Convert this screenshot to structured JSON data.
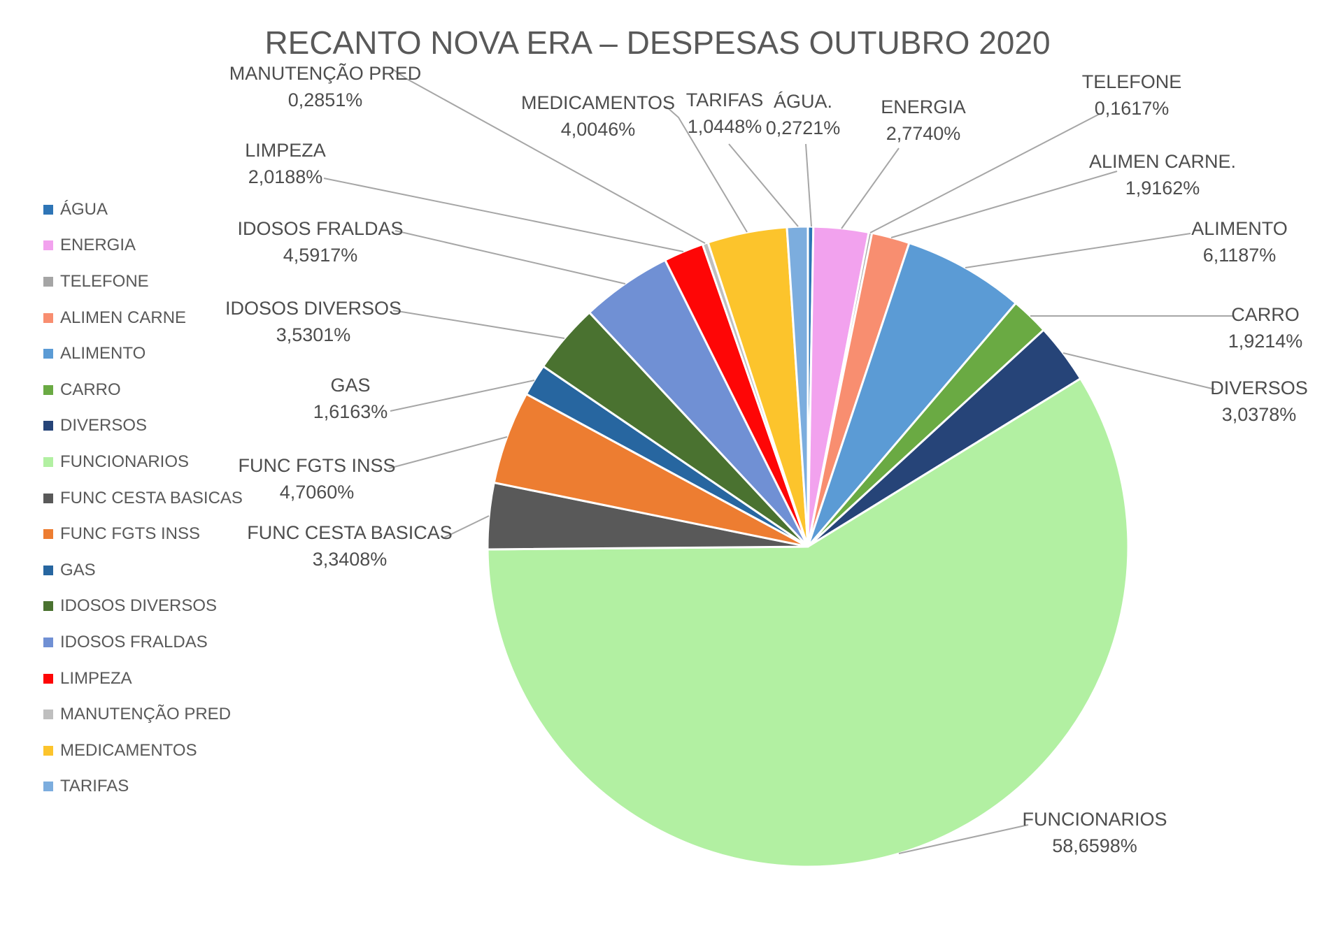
{
  "title": "RECANTO NOVA ERA – DESPESAS OUTUBRO 2020",
  "chart_data": {
    "type": "pie",
    "title": "RECANTO NOVA ERA – DESPESAS OUTUBRO 2020",
    "unit": "percent",
    "direction": "clockwise",
    "start_angle_deg": 0,
    "legend_position": "left",
    "grid": false,
    "categories": [
      "ÁGUA",
      "ENERGIA",
      "TELEFONE",
      "ALIMEN CARNE",
      "ALIMENTO",
      "CARRO",
      "DIVERSOS",
      "FUNCIONARIOS",
      "FUNC CESTA BASICAS",
      "FUNC FGTS INSS",
      "GAS",
      "IDOSOS DIVERSOS",
      "IDOSOS FRALDAS",
      "LIMPEZA",
      "MANUTENÇÃO PRED",
      "MEDICAMENTOS",
      "TARIFAS"
    ],
    "values": [
      0.2721,
      2.774,
      0.1617,
      1.9162,
      6.1187,
      1.9214,
      3.0378,
      58.6598,
      3.3408,
      4.706,
      1.6163,
      3.5301,
      4.5917,
      2.0188,
      0.2851,
      4.0046,
      1.0448
    ],
    "value_labels": [
      "0,2721%",
      "2,7740%",
      "0,1617%",
      "1,9162%",
      "6,1187%",
      "1,9214%",
      "3,0378%",
      "58,6598%",
      "3,3408%",
      "4,7060%",
      "1,6163%",
      "3,5301%",
      "4,5917%",
      "2,0188%",
      "0,2851%",
      "4,0046%",
      "1,0448%"
    ],
    "callout_names": [
      "ÁGUA.",
      "ENERGIA",
      "TELEFONE",
      "ALIMEN CARNE.",
      "ALIMENTO",
      "CARRO",
      "DIVERSOS",
      "FUNCIONARIOS",
      "FUNC CESTA BASICAS",
      "FUNC FGTS INSS",
      "GAS",
      "IDOSOS DIVERSOS",
      "IDOSOS FRALDAS",
      "LIMPEZA",
      "MANUTENÇÃO PRED",
      "MEDICAMENTOS",
      "TARIFAS"
    ],
    "colors": [
      "#2E75B6",
      "#F2A2EE",
      "#A5A5A5",
      "#F88E70",
      "#5B9BD5",
      "#6AAA43",
      "#264478",
      "#B2F0A2",
      "#595959",
      "#ED7D31",
      "#2766A0",
      "#4A7230",
      "#7090D4",
      "#FE0606",
      "#BFBFBF",
      "#FCC42C",
      "#7CADDE"
    ],
    "slice_border_color": "#FFFFFF",
    "text_color": "#595959",
    "leader_line_color": "#A6A6A6"
  }
}
